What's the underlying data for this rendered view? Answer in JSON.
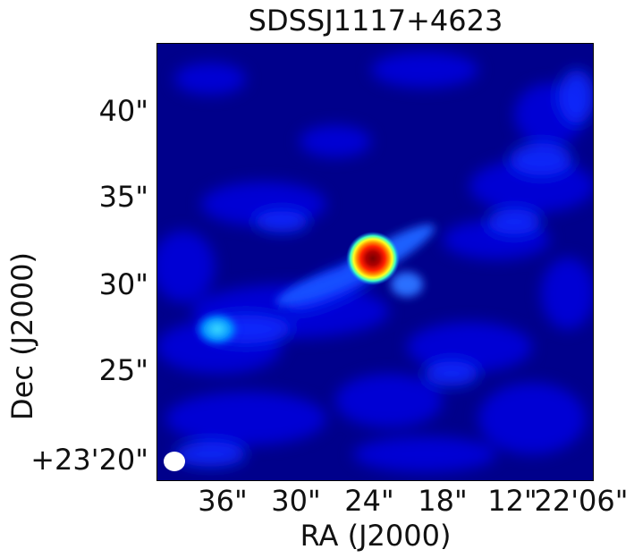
{
  "title": "SDSSJ1117+4623",
  "xlabel": "RA (J2000)",
  "ylabel": "Dec (J2000)",
  "y_ticks": [
    "40\"",
    "35\"",
    "30\"",
    "25\"",
    "+23'20\""
  ],
  "x_ticks": [
    "36\"",
    "30\"",
    "24\"",
    "18\"",
    "12\"",
    "22'06\""
  ],
  "colormap": "jet",
  "colors": {
    "background": "#00008b",
    "peak": "#8b0000",
    "beam": "#ffffff"
  }
}
